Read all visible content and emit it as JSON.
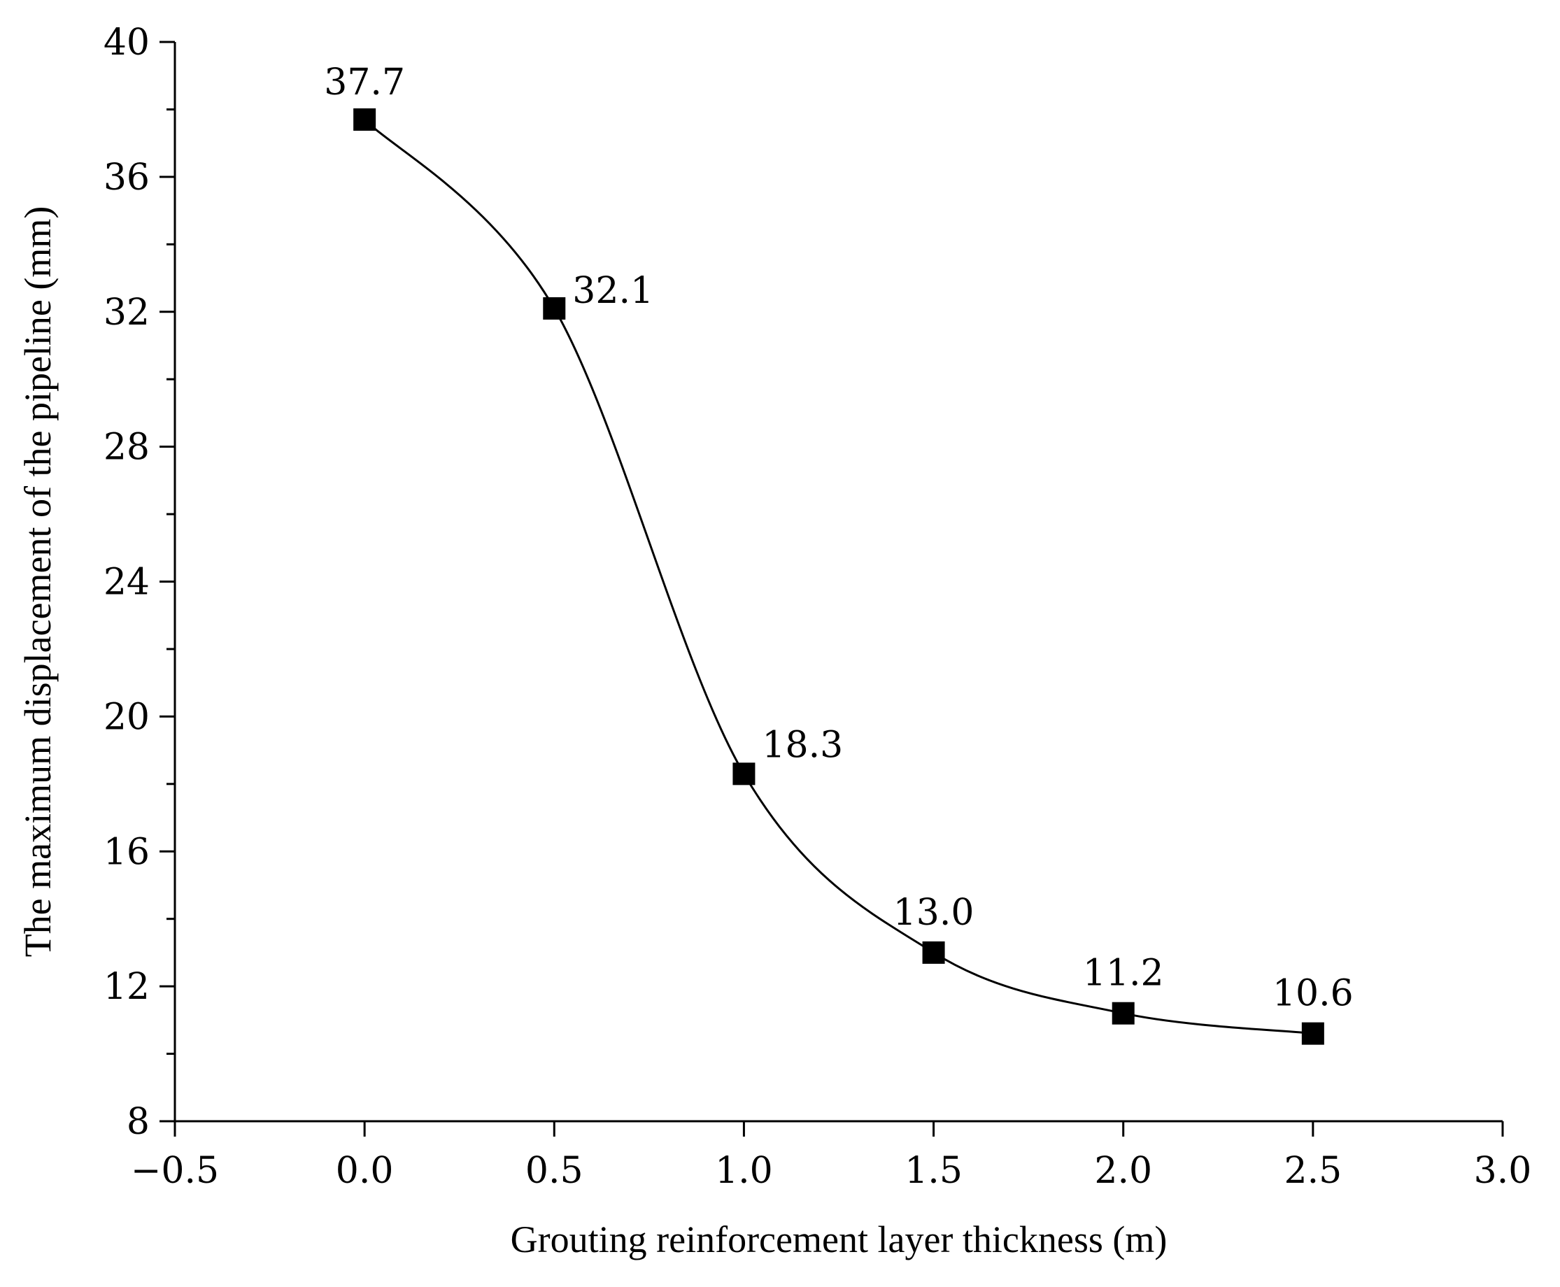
{
  "chart_data": {
    "type": "line",
    "title": "",
    "xlabel": "Grouting reinforcement layer thickness (m)",
    "ylabel": "The maximum displacement of the pipeline (mm)",
    "xlim": [
      -0.5,
      3.0
    ],
    "ylim": [
      8,
      40
    ],
    "x_ticks": [
      -0.5,
      0.0,
      0.5,
      1.0,
      1.5,
      2.0,
      2.5,
      3.0
    ],
    "x_tick_labels": [
      "−0.5",
      "0.0",
      "0.5",
      "1.0",
      "1.5",
      "2.0",
      "2.5",
      "3.0"
    ],
    "y_ticks": [
      8,
      12,
      16,
      20,
      24,
      28,
      32,
      36,
      40
    ],
    "y_tick_labels": [
      "8",
      "12",
      "16",
      "20",
      "24",
      "28",
      "32",
      "36",
      "40"
    ],
    "grid": false,
    "legend": "none",
    "marker": "square",
    "line_style": "smooth",
    "series": [
      {
        "x": [
          0.0,
          0.5,
          1.0,
          1.5,
          2.0,
          2.5
        ],
        "values": [
          37.7,
          32.1,
          18.3,
          13.0,
          11.2,
          10.6
        ],
        "labels": [
          "37.7",
          "32.1",
          "18.3",
          "13.0",
          "11.2",
          "10.6"
        ],
        "color": "#000000"
      }
    ]
  }
}
